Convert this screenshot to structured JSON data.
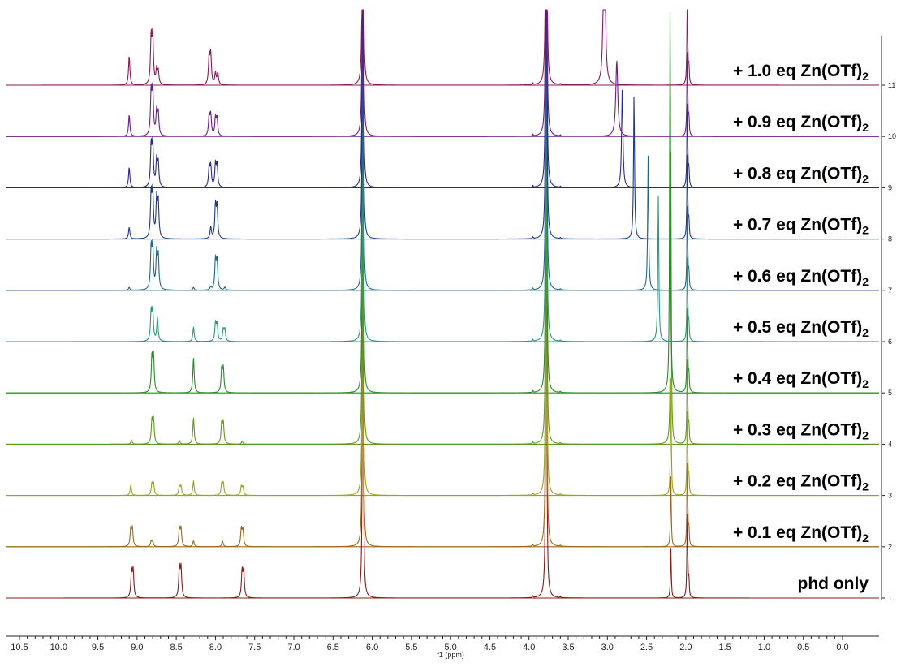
{
  "chart_data": {
    "type": "line",
    "xlabel": "f1 (ppm)",
    "x_axis": {
      "ticks": [
        "10.5",
        "10.0",
        "9.5",
        "9.0",
        "8.5",
        "8.0",
        "7.5",
        "7.0",
        "6.5",
        "6.0",
        "5.5",
        "5.0",
        "4.5",
        "4.0",
        "3.5",
        "3.0",
        "2.5",
        "2.0",
        "1.5",
        "1.0",
        "0.5",
        "0.0"
      ],
      "range": [
        10.5,
        0.0
      ],
      "reversed": true
    },
    "right_axis": {
      "ticks": [
        "1",
        "2",
        "3",
        "4",
        "5",
        "6",
        "7",
        "8",
        "9",
        "10",
        "11"
      ]
    },
    "series": [
      {
        "name": "phd only",
        "name_sub": "",
        "color": "#8b1a1a",
        "peaks": [
          {
            "x": 9.07,
            "h": 0.45,
            "w": 0.02
          },
          {
            "x": 9.05,
            "h": 0.45,
            "w": 0.02
          },
          {
            "x": 8.46,
            "h": 0.5,
            "w": 0.02
          },
          {
            "x": 8.44,
            "h": 0.5,
            "w": 0.02
          },
          {
            "x": 7.66,
            "h": 0.45,
            "w": 0.02
          },
          {
            "x": 7.64,
            "h": 0.43,
            "w": 0.02
          },
          {
            "x": 6.12,
            "h": 8.0,
            "w": 0.012
          },
          {
            "x": 3.78,
            "h": 10.0,
            "w": 0.012
          },
          {
            "x": 3.95,
            "h": 0.03,
            "w": 0.01
          },
          {
            "x": 3.6,
            "h": 0.02,
            "w": 0.01
          },
          {
            "x": 2.19,
            "h": 0.85,
            "w": 0.012
          },
          {
            "x": 1.98,
            "h": 1.6,
            "w": 0.012
          },
          {
            "x": 1.96,
            "h": 0.3,
            "w": 0.01
          }
        ]
      },
      {
        "name": "+ 0.1 eq Zn(OTf)",
        "name_sub": "2",
        "color": "#9a6a1f",
        "peaks": [
          {
            "x": 9.08,
            "h": 0.3,
            "w": 0.02
          },
          {
            "x": 9.06,
            "h": 0.3,
            "w": 0.02
          },
          {
            "x": 8.82,
            "h": 0.09,
            "w": 0.02
          },
          {
            "x": 8.8,
            "h": 0.09,
            "w": 0.02
          },
          {
            "x": 8.46,
            "h": 0.3,
            "w": 0.02
          },
          {
            "x": 8.44,
            "h": 0.3,
            "w": 0.02
          },
          {
            "x": 8.28,
            "h": 0.1,
            "w": 0.02
          },
          {
            "x": 7.91,
            "h": 0.1,
            "w": 0.02
          },
          {
            "x": 7.67,
            "h": 0.3,
            "w": 0.02
          },
          {
            "x": 7.65,
            "h": 0.28,
            "w": 0.02
          },
          {
            "x": 6.12,
            "h": 8.0,
            "w": 0.012
          },
          {
            "x": 3.78,
            "h": 10.0,
            "w": 0.012
          },
          {
            "x": 3.95,
            "h": 0.03,
            "w": 0.01
          },
          {
            "x": 3.6,
            "h": 0.02,
            "w": 0.01
          },
          {
            "x": 2.19,
            "h": 1.2,
            "w": 0.012
          },
          {
            "x": 1.98,
            "h": 1.6,
            "w": 0.012
          },
          {
            "x": 1.96,
            "h": 0.3,
            "w": 0.01
          }
        ]
      },
      {
        "name": "+ 0.2 eq Zn(OTf)",
        "name_sub": "2",
        "color": "#98a51f",
        "peaks": [
          {
            "x": 9.08,
            "h": 0.18,
            "w": 0.02
          },
          {
            "x": 8.81,
            "h": 0.2,
            "w": 0.02
          },
          {
            "x": 8.79,
            "h": 0.2,
            "w": 0.02
          },
          {
            "x": 8.46,
            "h": 0.15,
            "w": 0.02
          },
          {
            "x": 8.44,
            "h": 0.15,
            "w": 0.02
          },
          {
            "x": 8.28,
            "h": 0.25,
            "w": 0.02
          },
          {
            "x": 7.92,
            "h": 0.2,
            "w": 0.02
          },
          {
            "x": 7.9,
            "h": 0.2,
            "w": 0.02
          },
          {
            "x": 7.67,
            "h": 0.15,
            "w": 0.02
          },
          {
            "x": 7.65,
            "h": 0.14,
            "w": 0.02
          },
          {
            "x": 6.12,
            "h": 8.0,
            "w": 0.012
          },
          {
            "x": 3.78,
            "h": 10.0,
            "w": 0.012
          },
          {
            "x": 3.95,
            "h": 0.03,
            "w": 0.01
          },
          {
            "x": 3.6,
            "h": 0.02,
            "w": 0.01
          },
          {
            "x": 2.19,
            "h": 2.0,
            "w": 0.012
          },
          {
            "x": 1.98,
            "h": 1.6,
            "w": 0.012
          },
          {
            "x": 1.96,
            "h": 0.3,
            "w": 0.01
          }
        ]
      },
      {
        "name": "+ 0.3 eq Zn(OTf)",
        "name_sub": "2",
        "color": "#5f9a1f",
        "peaks": [
          {
            "x": 9.07,
            "h": 0.07,
            "w": 0.02
          },
          {
            "x": 8.81,
            "h": 0.4,
            "w": 0.02
          },
          {
            "x": 8.79,
            "h": 0.4,
            "w": 0.02
          },
          {
            "x": 8.46,
            "h": 0.06,
            "w": 0.02
          },
          {
            "x": 8.28,
            "h": 0.45,
            "w": 0.02
          },
          {
            "x": 7.92,
            "h": 0.35,
            "w": 0.02
          },
          {
            "x": 7.9,
            "h": 0.35,
            "w": 0.02
          },
          {
            "x": 7.66,
            "h": 0.05,
            "w": 0.02
          },
          {
            "x": 6.12,
            "h": 8.0,
            "w": 0.012
          },
          {
            "x": 3.78,
            "h": 10.0,
            "w": 0.012
          },
          {
            "x": 3.95,
            "h": 0.03,
            "w": 0.01
          },
          {
            "x": 3.6,
            "h": 0.02,
            "w": 0.01
          },
          {
            "x": 2.19,
            "h": 5.0,
            "w": 0.012
          },
          {
            "x": 1.98,
            "h": 1.6,
            "w": 0.012
          },
          {
            "x": 1.96,
            "h": 0.3,
            "w": 0.01
          }
        ]
      },
      {
        "name": "+ 0.4 eq Zn(OTf)",
        "name_sub": "2",
        "color": "#2a8a2a",
        "peaks": [
          {
            "x": 8.81,
            "h": 0.6,
            "w": 0.02
          },
          {
            "x": 8.79,
            "h": 0.6,
            "w": 0.02
          },
          {
            "x": 8.28,
            "h": 0.6,
            "w": 0.02
          },
          {
            "x": 7.92,
            "h": 0.4,
            "w": 0.02
          },
          {
            "x": 7.9,
            "h": 0.4,
            "w": 0.02
          },
          {
            "x": 6.12,
            "h": 8.0,
            "w": 0.012
          },
          {
            "x": 3.78,
            "h": 10.0,
            "w": 0.012
          },
          {
            "x": 3.95,
            "h": 0.03,
            "w": 0.01
          },
          {
            "x": 3.6,
            "h": 0.02,
            "w": 0.01
          },
          {
            "x": 2.2,
            "h": 8.0,
            "w": 0.012
          },
          {
            "x": 1.98,
            "h": 1.6,
            "w": 0.012
          },
          {
            "x": 1.96,
            "h": 0.3,
            "w": 0.01
          }
        ]
      },
      {
        "name": "+ 0.5 eq Zn(OTf)",
        "name_sub": "2",
        "color": "#2a9a7a",
        "peaks": [
          {
            "x": 8.82,
            "h": 0.5,
            "w": 0.02
          },
          {
            "x": 8.8,
            "h": 0.5,
            "w": 0.02
          },
          {
            "x": 8.74,
            "h": 0.4,
            "w": 0.02
          },
          {
            "x": 8.28,
            "h": 0.25,
            "w": 0.02
          },
          {
            "x": 8.0,
            "h": 0.3,
            "w": 0.02
          },
          {
            "x": 7.98,
            "h": 0.3,
            "w": 0.02
          },
          {
            "x": 7.9,
            "h": 0.2,
            "w": 0.02
          },
          {
            "x": 7.88,
            "h": 0.2,
            "w": 0.02
          },
          {
            "x": 6.12,
            "h": 8.0,
            "w": 0.012
          },
          {
            "x": 3.78,
            "h": 10.0,
            "w": 0.012
          },
          {
            "x": 3.95,
            "h": 0.03,
            "w": 0.01
          },
          {
            "x": 3.6,
            "h": 0.02,
            "w": 0.01
          },
          {
            "x": 2.35,
            "h": 2.5,
            "w": 0.015
          },
          {
            "x": 1.98,
            "h": 1.6,
            "w": 0.012
          },
          {
            "x": 1.96,
            "h": 0.3,
            "w": 0.01
          }
        ]
      },
      {
        "name": "+ 0.6 eq Zn(OTf)",
        "name_sub": "2",
        "color": "#1f6a8a",
        "peaks": [
          {
            "x": 9.1,
            "h": 0.05,
            "w": 0.02
          },
          {
            "x": 8.82,
            "h": 0.7,
            "w": 0.02
          },
          {
            "x": 8.8,
            "h": 0.7,
            "w": 0.02
          },
          {
            "x": 8.75,
            "h": 0.6,
            "w": 0.02
          },
          {
            "x": 8.73,
            "h": 0.55,
            "w": 0.02
          },
          {
            "x": 8.28,
            "h": 0.05,
            "w": 0.02
          },
          {
            "x": 8.06,
            "h": 0.05,
            "w": 0.02
          },
          {
            "x": 8.0,
            "h": 0.5,
            "w": 0.02
          },
          {
            "x": 7.98,
            "h": 0.5,
            "w": 0.02
          },
          {
            "x": 7.88,
            "h": 0.05,
            "w": 0.02
          },
          {
            "x": 6.12,
            "h": 8.0,
            "w": 0.012
          },
          {
            "x": 3.78,
            "h": 10.0,
            "w": 0.012
          },
          {
            "x": 3.95,
            "h": 0.03,
            "w": 0.01
          },
          {
            "x": 3.6,
            "h": 0.02,
            "w": 0.01
          },
          {
            "x": 2.48,
            "h": 2.3,
            "w": 0.015
          },
          {
            "x": 1.98,
            "h": 1.6,
            "w": 0.012
          },
          {
            "x": 1.96,
            "h": 0.3,
            "w": 0.01
          }
        ]
      },
      {
        "name": "+ 0.7 eq Zn(OTf)",
        "name_sub": "2",
        "color": "#1f3a8a",
        "peaks": [
          {
            "x": 9.1,
            "h": 0.2,
            "w": 0.02
          },
          {
            "x": 8.82,
            "h": 0.75,
            "w": 0.02
          },
          {
            "x": 8.8,
            "h": 0.75,
            "w": 0.02
          },
          {
            "x": 8.75,
            "h": 0.65,
            "w": 0.02
          },
          {
            "x": 8.73,
            "h": 0.6,
            "w": 0.02
          },
          {
            "x": 8.06,
            "h": 0.2,
            "w": 0.02
          },
          {
            "x": 8.0,
            "h": 0.55,
            "w": 0.02
          },
          {
            "x": 7.98,
            "h": 0.55,
            "w": 0.02
          },
          {
            "x": 6.12,
            "h": 8.0,
            "w": 0.012
          },
          {
            "x": 3.78,
            "h": 10.0,
            "w": 0.012
          },
          {
            "x": 3.95,
            "h": 0.03,
            "w": 0.01
          },
          {
            "x": 3.6,
            "h": 0.02,
            "w": 0.01
          },
          {
            "x": 2.66,
            "h": 2.5,
            "w": 0.015
          },
          {
            "x": 1.98,
            "h": 1.6,
            "w": 0.012
          },
          {
            "x": 1.96,
            "h": 0.3,
            "w": 0.01
          }
        ]
      },
      {
        "name": "+ 0.8 eq Zn(OTf)",
        "name_sub": "2",
        "color": "#2a2a8a",
        "peaks": [
          {
            "x": 9.1,
            "h": 0.35,
            "w": 0.02
          },
          {
            "x": 8.82,
            "h": 0.7,
            "w": 0.02
          },
          {
            "x": 8.8,
            "h": 0.7,
            "w": 0.02
          },
          {
            "x": 8.75,
            "h": 0.45,
            "w": 0.02
          },
          {
            "x": 8.73,
            "h": 0.4,
            "w": 0.02
          },
          {
            "x": 8.08,
            "h": 0.35,
            "w": 0.02
          },
          {
            "x": 8.06,
            "h": 0.35,
            "w": 0.02
          },
          {
            "x": 8.0,
            "h": 0.38,
            "w": 0.02
          },
          {
            "x": 7.98,
            "h": 0.38,
            "w": 0.02
          },
          {
            "x": 6.12,
            "h": 8.0,
            "w": 0.012
          },
          {
            "x": 3.78,
            "h": 10.0,
            "w": 0.012
          },
          {
            "x": 3.95,
            "h": 0.03,
            "w": 0.01
          },
          {
            "x": 3.6,
            "h": 0.02,
            "w": 0.01
          },
          {
            "x": 2.81,
            "h": 1.7,
            "w": 0.02
          },
          {
            "x": 1.98,
            "h": 1.6,
            "w": 0.012
          },
          {
            "x": 1.96,
            "h": 0.3,
            "w": 0.01
          }
        ]
      },
      {
        "name": "+ 0.9 eq Zn(OTf)",
        "name_sub": "2",
        "color": "#6a1f8a",
        "peaks": [
          {
            "x": 9.1,
            "h": 0.37,
            "w": 0.02
          },
          {
            "x": 8.82,
            "h": 0.75,
            "w": 0.02
          },
          {
            "x": 8.8,
            "h": 0.75,
            "w": 0.02
          },
          {
            "x": 8.75,
            "h": 0.4,
            "w": 0.02
          },
          {
            "x": 8.73,
            "h": 0.38,
            "w": 0.02
          },
          {
            "x": 8.08,
            "h": 0.35,
            "w": 0.02
          },
          {
            "x": 8.06,
            "h": 0.35,
            "w": 0.02
          },
          {
            "x": 8.0,
            "h": 0.3,
            "w": 0.02
          },
          {
            "x": 7.98,
            "h": 0.3,
            "w": 0.02
          },
          {
            "x": 6.12,
            "h": 8.0,
            "w": 0.012
          },
          {
            "x": 3.78,
            "h": 10.0,
            "w": 0.012
          },
          {
            "x": 3.95,
            "h": 0.03,
            "w": 0.01
          },
          {
            "x": 3.6,
            "h": 0.02,
            "w": 0.01
          },
          {
            "x": 2.88,
            "h": 1.3,
            "w": 0.03
          },
          {
            "x": 1.98,
            "h": 1.6,
            "w": 0.012
          },
          {
            "x": 1.96,
            "h": 0.3,
            "w": 0.01
          }
        ]
      },
      {
        "name": "+ 1.0 eq Zn(OTf)",
        "name_sub": "2",
        "color": "#8a1a5a",
        "peaks": [
          {
            "x": 9.1,
            "h": 0.5,
            "w": 0.02
          },
          {
            "x": 8.82,
            "h": 0.8,
            "w": 0.02
          },
          {
            "x": 8.8,
            "h": 0.8,
            "w": 0.02
          },
          {
            "x": 8.75,
            "h": 0.25,
            "w": 0.02
          },
          {
            "x": 8.73,
            "h": 0.22,
            "w": 0.02
          },
          {
            "x": 8.08,
            "h": 0.5,
            "w": 0.02
          },
          {
            "x": 8.06,
            "h": 0.5,
            "w": 0.02
          },
          {
            "x": 8.0,
            "h": 0.2,
            "w": 0.02
          },
          {
            "x": 7.97,
            "h": 0.2,
            "w": 0.02
          },
          {
            "x": 6.12,
            "h": 8.0,
            "w": 0.012
          },
          {
            "x": 3.78,
            "h": 10.0,
            "w": 0.012
          },
          {
            "x": 3.95,
            "h": 0.03,
            "w": 0.01
          },
          {
            "x": 3.6,
            "h": 0.02,
            "w": 0.01
          },
          {
            "x": 3.04,
            "h": 5.0,
            "w": 0.02
          },
          {
            "x": 1.98,
            "h": 1.6,
            "w": 0.012
          },
          {
            "x": 1.96,
            "h": 0.3,
            "w": 0.01
          }
        ]
      }
    ]
  }
}
